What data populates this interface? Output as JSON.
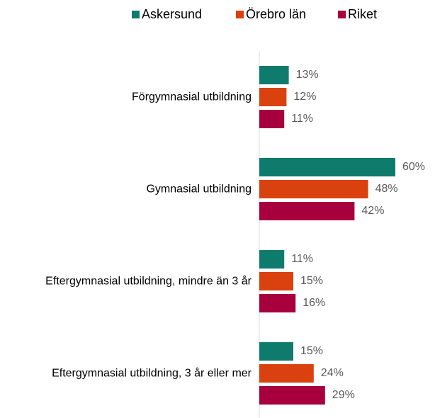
{
  "chart_data": {
    "type": "bar",
    "orientation": "horizontal",
    "categories": [
      "Förgymnasial utbildning",
      "Gymnasial utbildning",
      "Eftergymnasial utbildning, mindre än 3 år",
      "Eftergymnasial utbildning, 3 år eller mer"
    ],
    "series": [
      {
        "name": "Askersund",
        "color": "#0f7b6c",
        "values": [
          13,
          60,
          11,
          15
        ],
        "value_labels": [
          "13%",
          "60%",
          "11%",
          "15%"
        ]
      },
      {
        "name": "Örebro län",
        "color": "#d9410f",
        "values": [
          12,
          48,
          15,
          24
        ],
        "value_labels": [
          "12%",
          "48%",
          "15%",
          "24%"
        ]
      },
      {
        "name": "Riket",
        "color": "#a8003c",
        "values": [
          11,
          42,
          16,
          29
        ],
        "value_labels": [
          "11%",
          "42%",
          "16%",
          "29%"
        ]
      }
    ],
    "xlim": [
      0,
      75
    ],
    "legend": "top"
  }
}
